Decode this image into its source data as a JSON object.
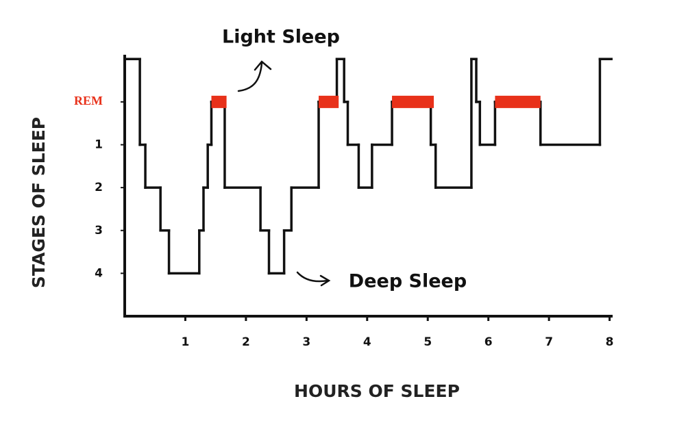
{
  "chart_data": {
    "type": "step-line",
    "xlabel": "HOURS OF SLEEP",
    "ylabel": "STAGES OF SLEEP",
    "annotations": [
      "Light Sleep",
      "Deep Sleep"
    ],
    "x": [
      0,
      0.25,
      0.34,
      0.59,
      0.73,
      1.23,
      1.3,
      1.37,
      1.43,
      1.65,
      2.24,
      2.38,
      2.63,
      2.75,
      3.2,
      3.5,
      3.62,
      3.68,
      3.86,
      4.08,
      4.41,
      5.05,
      5.13,
      5.72,
      5.8,
      5.86,
      6.11,
      6.86,
      7.84,
      8.03
    ],
    "values": [
      -1,
      1,
      2,
      3,
      4,
      3,
      2,
      1,
      0,
      2,
      3,
      4,
      3,
      2,
      0,
      -1,
      0,
      1,
      2,
      1,
      0,
      1,
      2,
      -1,
      0,
      1,
      0,
      1,
      -1,
      -1
    ],
    "color": "#111111",
    "rem_level": 0,
    "rem_color": "#e8311a",
    "rem_periods": [
      {
        "start": 1.43,
        "end": 1.68
      },
      {
        "start": 3.2,
        "end": 3.53
      },
      {
        "start": 4.41,
        "end": 5.1
      },
      {
        "start": 6.11,
        "end": 6.86
      }
    ],
    "xlim": [
      0,
      8.05
    ],
    "xticks": [
      1,
      2,
      3,
      4,
      5,
      6,
      7,
      8
    ],
    "ylim": [
      5,
      -1.1
    ],
    "yticks": [
      {
        "value": 0,
        "label": "REM"
      },
      1,
      2,
      3,
      4
    ],
    "grid": false
  }
}
